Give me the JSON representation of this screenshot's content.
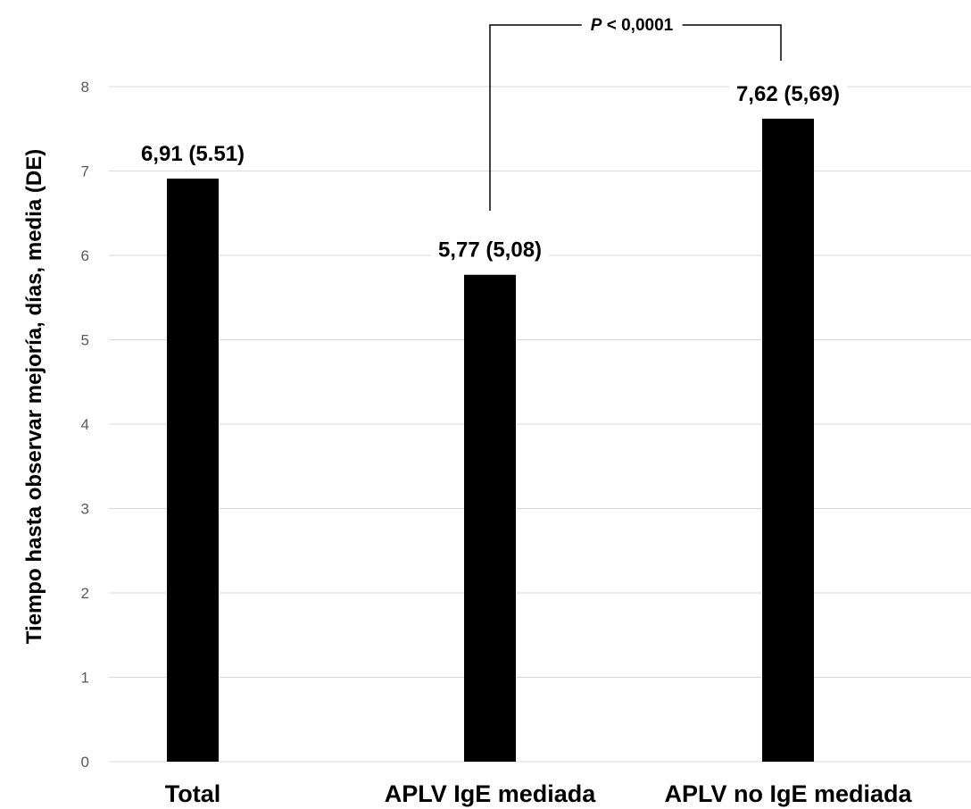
{
  "chart_data": {
    "type": "bar",
    "categories": [
      "Total",
      "APLV IgE mediada",
      "APLV no IgE mediada"
    ],
    "values": [
      6.91,
      5.77,
      7.62
    ],
    "data_labels": [
      "6,91 (5.51)",
      "5,77 (5,08)",
      "7,62 (5,69)"
    ],
    "title": "",
    "xlabel": "",
    "ylabel": "Tiempo hasta observar mejoría, días, media (DE)",
    "ylim": [
      0,
      8
    ],
    "yticks": [
      "0",
      "1",
      "2",
      "3",
      "4",
      "5",
      "6",
      "7",
      "8"
    ],
    "grid": true,
    "bar_color": "#000000",
    "grid_color": "#d9d9d9",
    "annotation": {
      "p_symbol": "P",
      "text": " < 0,0001",
      "between": [
        "APLV IgE mediada",
        "APLV no IgE mediada"
      ]
    }
  }
}
